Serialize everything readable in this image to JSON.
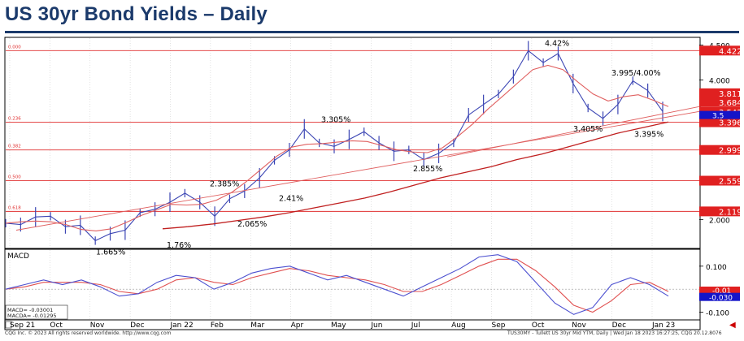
{
  "title": "US 30yr Bond Yields – Daily",
  "footer": {
    "left": "CQG Inc. © 2023 All rights reserved worldwide. http://www.cqg.com",
    "right": "TUS30MY - Tullett US 30yr Mid YTM, Daily | Wed Jan 18 2023 16:27:25, CQG 20.12.8076"
  },
  "colors": {
    "title": "#1b3a6b",
    "price": "#3c46b4",
    "ma_short": "#e06060",
    "ma_long": "#c02020",
    "fib": "#e03030",
    "macd": "#4c50d0",
    "signal": "#e05050",
    "current_box": "#1414c8"
  },
  "chart_data": [
    {
      "type": "line",
      "name": "price_panel",
      "x_labels": [
        "Sep 21",
        "Oct",
        "Nov",
        "Dec",
        "Jan 22",
        "Feb",
        "Mar",
        "Apr",
        "May",
        "Jun",
        "Jul",
        "Aug",
        "Sep",
        "Oct",
        "Nov",
        "Dec",
        "Jan 23"
      ],
      "ylim": [
        1.6,
        4.6
      ],
      "y_ticks": [
        "4.500",
        "4.000",
        "2.000"
      ],
      "series": [
        {
          "values": [
            1.95,
            1.93,
            2.04,
            2.05,
            1.9,
            1.92,
            1.7,
            1.8,
            1.85,
            2.1,
            2.15,
            2.25,
            2.38,
            2.25,
            2.05,
            2.3,
            2.41,
            2.6,
            2.85,
            3.0,
            3.3,
            3.1,
            3.05,
            3.15,
            3.26,
            3.1,
            2.98,
            3.0,
            2.86,
            2.95,
            3.1,
            3.5,
            3.65,
            3.8,
            4.05,
            4.42,
            4.25,
            4.38,
            3.95,
            3.6,
            3.45,
            3.65,
            3.99,
            3.85,
            3.55
          ]
        },
        {
          "values": [
            1.95,
            1.97,
            1.98,
            1.97,
            1.93,
            1.86,
            1.84,
            1.87,
            1.96,
            2.06,
            2.14,
            2.22,
            2.21,
            2.22,
            2.28,
            2.39,
            2.55,
            2.73,
            2.91,
            3.04,
            3.08,
            3.09,
            3.11,
            3.13,
            3.12,
            3.06,
            3.0,
            2.97,
            2.96,
            3.03,
            3.19,
            3.37,
            3.58,
            3.77,
            3.96,
            4.15,
            4.21,
            4.15,
            3.97,
            3.8,
            3.7,
            3.76,
            3.79,
            3.71,
            3.62
          ]
        },
        {
          "values": [
            1.87,
            1.9,
            1.94,
            1.99,
            2.04,
            2.1,
            2.17,
            2.24,
            2.31,
            2.4,
            2.5,
            2.6,
            2.68,
            2.76,
            2.86,
            2.94,
            3.04,
            3.14,
            3.24,
            3.32,
            3.4
          ]
        }
      ],
      "price_labels": [
        "1.665%",
        "1.76%",
        "2.065%",
        "2.385%",
        "2.41%",
        "3.305%",
        "2.855%",
        "4.42%",
        "3.995/4.00%",
        "3.405%",
        "3.395%"
      ],
      "fib_labels": [
        "0.000",
        "0.236",
        "0.382",
        "0.500",
        "0.618"
      ],
      "level_boxes": [
        "4.422",
        "3.811",
        "3.684",
        "3.543",
        "3.396",
        "2.999",
        "2.559",
        "2.119"
      ],
      "current_value_box": "3.5"
    },
    {
      "type": "line",
      "name": "macd_panel",
      "title": "MACD",
      "ylim": [
        -0.13,
        0.17
      ],
      "y_ticks": [
        "0.100",
        "-0.100"
      ],
      "series": [
        {
          "values": [
            0.0,
            0.02,
            0.04,
            0.02,
            0.04,
            0.01,
            -0.03,
            -0.02,
            0.03,
            0.06,
            0.05,
            0.0,
            0.03,
            0.07,
            0.09,
            0.1,
            0.07,
            0.04,
            0.06,
            0.03,
            0.0,
            -0.03,
            0.01,
            0.05,
            0.09,
            0.14,
            0.15,
            0.12,
            0.03,
            -0.06,
            -0.11,
            -0.08,
            0.02,
            0.05,
            0.02,
            -0.03
          ]
        },
        {
          "values": [
            0.0,
            0.01,
            0.03,
            0.03,
            0.03,
            0.02,
            -0.01,
            -0.02,
            0.0,
            0.04,
            0.05,
            0.03,
            0.02,
            0.05,
            0.07,
            0.09,
            0.08,
            0.06,
            0.05,
            0.04,
            0.02,
            -0.01,
            -0.01,
            0.02,
            0.06,
            0.1,
            0.13,
            0.13,
            0.08,
            0.01,
            -0.07,
            -0.1,
            -0.05,
            0.02,
            0.03,
            -0.01
          ]
        }
      ],
      "readout": [
        "MACD= -0.03001",
        "MACDA= -0.01295"
      ],
      "current_value_box": "-0.030",
      "signal_box": "-0.01"
    }
  ]
}
